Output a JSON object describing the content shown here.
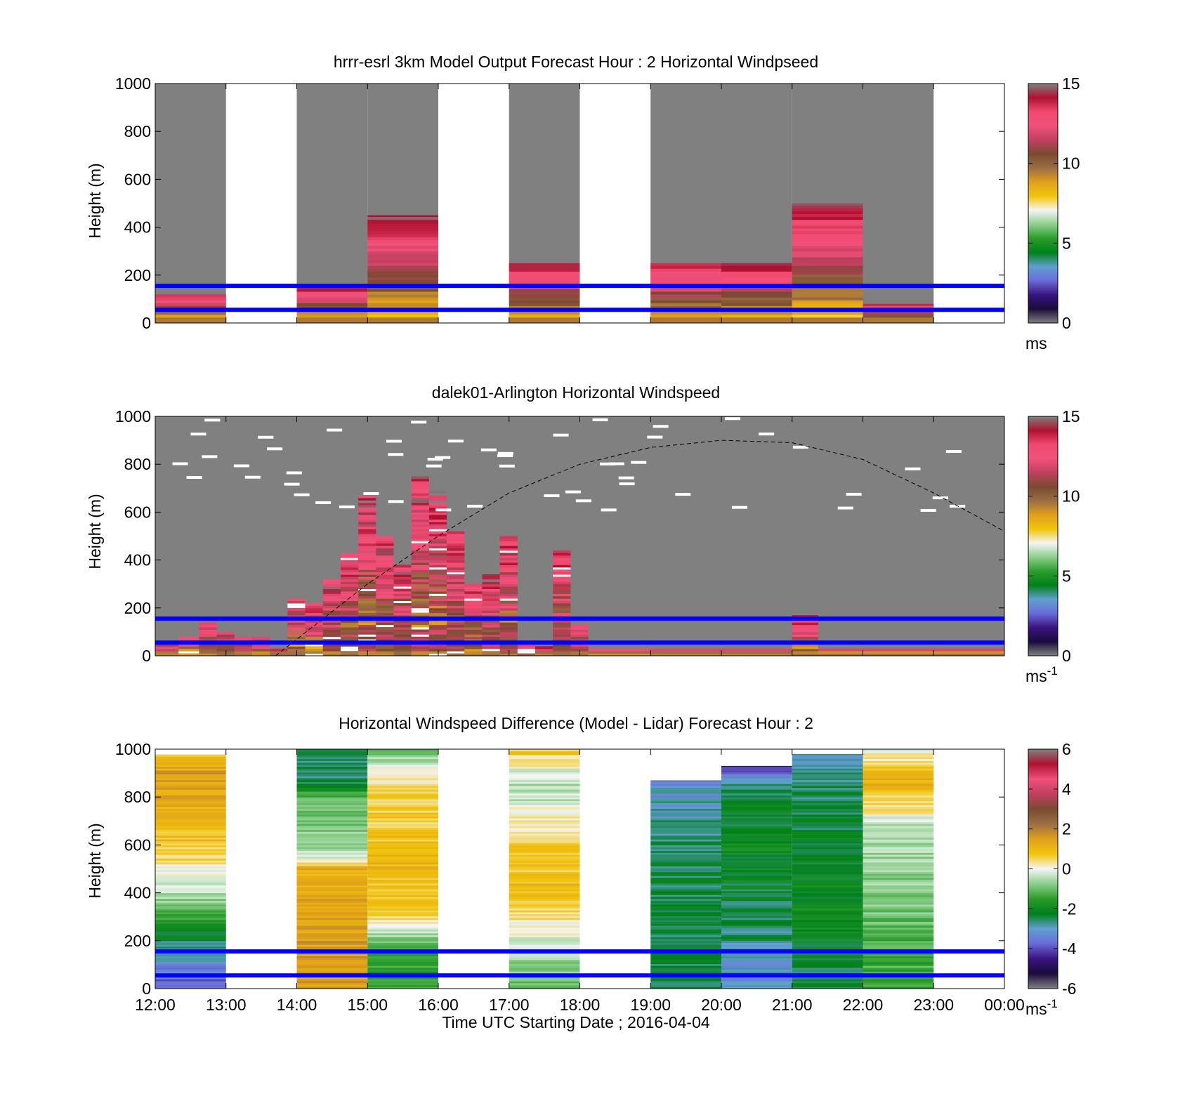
{
  "figure": {
    "xlabel": "Time UTC  Starting Date ; 2016-04-04",
    "x_ticks": [
      "12:00",
      "13:00",
      "14:00",
      "15:00",
      "16:00",
      "17:00",
      "18:00",
      "19:00",
      "20:00",
      "21:00",
      "22:00",
      "23:00",
      "00:00"
    ],
    "ylabel": "Height (m)",
    "y_ticks": [
      "0",
      "200",
      "400",
      "600",
      "800",
      "1000"
    ]
  },
  "colors": {
    "missing": "#808080",
    "reference_lines": "#0000ff",
    "ws_scale": [
      "#808080",
      "#1a0b3a",
      "#3a1480",
      "#6a6ad8",
      "#5fa0d0",
      "#00801a",
      "#2a9d2a",
      "#8ccf8c",
      "#f5f5f5",
      "#f2c40c",
      "#e0a01a",
      "#9b6e44",
      "#7a4a30",
      "#c04060",
      "#f0507a",
      "#f04a70",
      "#b01030",
      "#808080"
    ],
    "diff_scale": [
      "#808080",
      "#1a0b3a",
      "#3a1480",
      "#6a6ad8",
      "#5fa0d0",
      "#00801a",
      "#2a9d2a",
      "#8ccf8c",
      "#f5f5f5",
      "#f2c40c",
      "#e0a01a",
      "#9b6e44",
      "#7a4a30",
      "#c04060",
      "#f0507a",
      "#b01030",
      "#808080"
    ]
  },
  "chart_data": [
    {
      "type": "heatmap",
      "title": "hrrr-esrl 3km Model Output   Forecast Hour : 2 Horizontal Windpseed",
      "x_range_hours": [
        12,
        24
      ],
      "ylim": [
        0,
        1000
      ],
      "colorbar": {
        "ticks": [
          "0",
          "5",
          "10",
          "15"
        ],
        "range": [
          0,
          15
        ],
        "unit": "ms"
      },
      "reference_lines_m": [
        55,
        155
      ],
      "columns": [
        {
          "start": 12,
          "end": 13,
          "top_m": 120
        },
        {
          "start": 13,
          "end": 14,
          "missing": true
        },
        {
          "start": 14,
          "end": 15,
          "top_m": 150
        },
        {
          "start": 15,
          "end": 16,
          "top_m": 450
        },
        {
          "start": 16,
          "end": 17,
          "missing": true
        },
        {
          "start": 17,
          "end": 18,
          "top_m": 250
        },
        {
          "start": 18,
          "end": 19,
          "missing": true
        },
        {
          "start": 19,
          "end": 20,
          "top_m": 250
        },
        {
          "start": 20,
          "end": 21,
          "top_m": 250
        },
        {
          "start": 21,
          "end": 22,
          "top_m": 500
        },
        {
          "start": 22,
          "end": 23,
          "top_m": 80
        },
        {
          "start": 23,
          "end": 24,
          "missing": true
        }
      ]
    },
    {
      "type": "heatmap",
      "title": "dalek01-Arlington  Horizontal Windspeed",
      "x_range_hours": [
        12,
        24
      ],
      "ylim": [
        0,
        1000
      ],
      "colorbar": {
        "ticks": [
          "0",
          "5",
          "10",
          "15"
        ],
        "range": [
          0,
          15
        ],
        "unit": "ms",
        "unit_exponent": "-1"
      },
      "reference_lines_m": [
        55,
        155
      ],
      "curve_dashed": [
        [
          13.7,
          0
        ],
        [
          15,
          300
        ],
        [
          16,
          500
        ],
        [
          17,
          680
        ],
        [
          18,
          800
        ],
        [
          19,
          870
        ],
        [
          20,
          900
        ],
        [
          21,
          890
        ],
        [
          22,
          820
        ],
        [
          23,
          680
        ],
        [
          24,
          520
        ]
      ],
      "profiles": [
        {
          "start": 12.0,
          "end": 12.33,
          "top_m": 60
        },
        {
          "start": 12.33,
          "end": 12.62,
          "top_m": 80
        },
        {
          "start": 12.62,
          "end": 12.87,
          "top_m": 140
        },
        {
          "start": 12.87,
          "end": 13.12,
          "top_m": 100
        },
        {
          "start": 13.12,
          "end": 13.37,
          "top_m": 80
        },
        {
          "start": 13.37,
          "end": 13.62,
          "top_m": 80
        },
        {
          "start": 13.62,
          "end": 13.87,
          "top_m": 30
        },
        {
          "start": 13.87,
          "end": 14.12,
          "top_m": 260
        },
        {
          "start": 14.12,
          "end": 14.37,
          "top_m": 220
        },
        {
          "start": 14.37,
          "end": 14.62,
          "top_m": 320
        },
        {
          "start": 14.62,
          "end": 14.87,
          "top_m": 440
        },
        {
          "start": 14.87,
          "end": 15.12,
          "top_m": 680
        },
        {
          "start": 15.12,
          "end": 15.37,
          "top_m": 500
        },
        {
          "start": 15.37,
          "end": 15.62,
          "top_m": 380
        },
        {
          "start": 15.62,
          "end": 15.87,
          "top_m": 750
        },
        {
          "start": 15.87,
          "end": 16.12,
          "top_m": 690
        },
        {
          "start": 16.12,
          "end": 16.37,
          "top_m": 520
        },
        {
          "start": 16.37,
          "end": 16.62,
          "top_m": 300
        },
        {
          "start": 16.62,
          "end": 16.87,
          "top_m": 340
        },
        {
          "start": 16.87,
          "end": 17.12,
          "top_m": 500
        },
        {
          "start": 17.12,
          "end": 17.37,
          "top_m": 60
        },
        {
          "start": 17.37,
          "end": 17.62,
          "top_m": 40
        },
        {
          "start": 17.62,
          "end": 17.87,
          "top_m": 440
        },
        {
          "start": 17.87,
          "end": 18.12,
          "top_m": 130
        },
        {
          "start": 18.12,
          "end": 19.0,
          "top_m": 30
        },
        {
          "start": 19.0,
          "end": 21.0,
          "top_m": 30
        },
        {
          "start": 21.0,
          "end": 21.37,
          "top_m": 170
        },
        {
          "start": 21.37,
          "end": 24.0,
          "top_m": 30
        }
      ]
    },
    {
      "type": "heatmap",
      "title": "Horizontal Windspeed Difference (Model - Lidar) Forecast Hour : 2",
      "x_range_hours": [
        12,
        24
      ],
      "ylim": [
        0,
        1000
      ],
      "colorbar": {
        "ticks": [
          "-6",
          "-4",
          "-2",
          "0",
          "2",
          "4",
          "6"
        ],
        "range": [
          -6,
          6
        ],
        "unit": "ms",
        "unit_exponent": "-1"
      },
      "reference_lines_m": [
        55,
        155
      ],
      "columns": [
        {
          "start": 12,
          "end": 13,
          "top_m": 980,
          "profile": [
            [
              0,
              -4
            ],
            [
              190,
              -2.5
            ],
            [
              400,
              -0.5
            ],
            [
              600,
              0.8
            ],
            [
              900,
              1.5
            ],
            [
              980,
              0.5
            ]
          ]
        },
        {
          "start": 13,
          "end": 14,
          "missing": true
        },
        {
          "start": 14,
          "end": 15,
          "top_m": 1000,
          "profile": [
            [
              200,
              1.5
            ],
            [
              500,
              1.2
            ],
            [
              550,
              -0.5
            ],
            [
              800,
              -1.2
            ],
            [
              850,
              -2.5
            ],
            [
              1000,
              -2.5
            ]
          ]
        },
        {
          "start": 15,
          "end": 16,
          "top_m": 1000,
          "profile": [
            [
              0,
              -1.5
            ],
            [
              140,
              -1.5
            ],
            [
              300,
              0.5
            ],
            [
              520,
              1.0
            ],
            [
              800,
              0.5
            ],
            [
              950,
              -0.5
            ],
            [
              1000,
              -1.2
            ]
          ]
        },
        {
          "start": 16,
          "end": 17,
          "missing": true
        },
        {
          "start": 17,
          "end": 18,
          "top_m": 1000,
          "profile": [
            [
              0,
              -1.2
            ],
            [
              200,
              -0.2
            ],
            [
              400,
              1.0
            ],
            [
              600,
              0.6
            ],
            [
              850,
              -0.6
            ],
            [
              1000,
              0.8
            ]
          ]
        },
        {
          "start": 18,
          "end": 19,
          "missing": true
        },
        {
          "start": 19,
          "end": 20,
          "top_m": 870,
          "profile": [
            [
              0,
              -2.5
            ],
            [
              500,
              -2.5
            ],
            [
              560,
              -2.4
            ],
            [
              700,
              -2.8
            ],
            [
              870,
              -3.2
            ]
          ]
        },
        {
          "start": 20,
          "end": 21,
          "top_m": 930,
          "profile": [
            [
              0,
              -3.3
            ],
            [
              200,
              -2.6
            ],
            [
              600,
              -2.0
            ],
            [
              850,
              -2.6
            ],
            [
              930,
              -4.5
            ]
          ]
        },
        {
          "start": 21,
          "end": 22,
          "top_m": 980,
          "profile": [
            [
              0,
              -2.4
            ],
            [
              400,
              -2.0
            ],
            [
              800,
              -2.5
            ],
            [
              980,
              -3.0
            ]
          ]
        },
        {
          "start": 22,
          "end": 23,
          "top_m": 1000,
          "profile": [
            [
              0,
              -1.5
            ],
            [
              400,
              -0.8
            ],
            [
              680,
              -0.4
            ],
            [
              860,
              1.2
            ],
            [
              1000,
              -0.2
            ]
          ]
        },
        {
          "start": 23,
          "end": 24,
          "missing": true
        }
      ]
    }
  ]
}
